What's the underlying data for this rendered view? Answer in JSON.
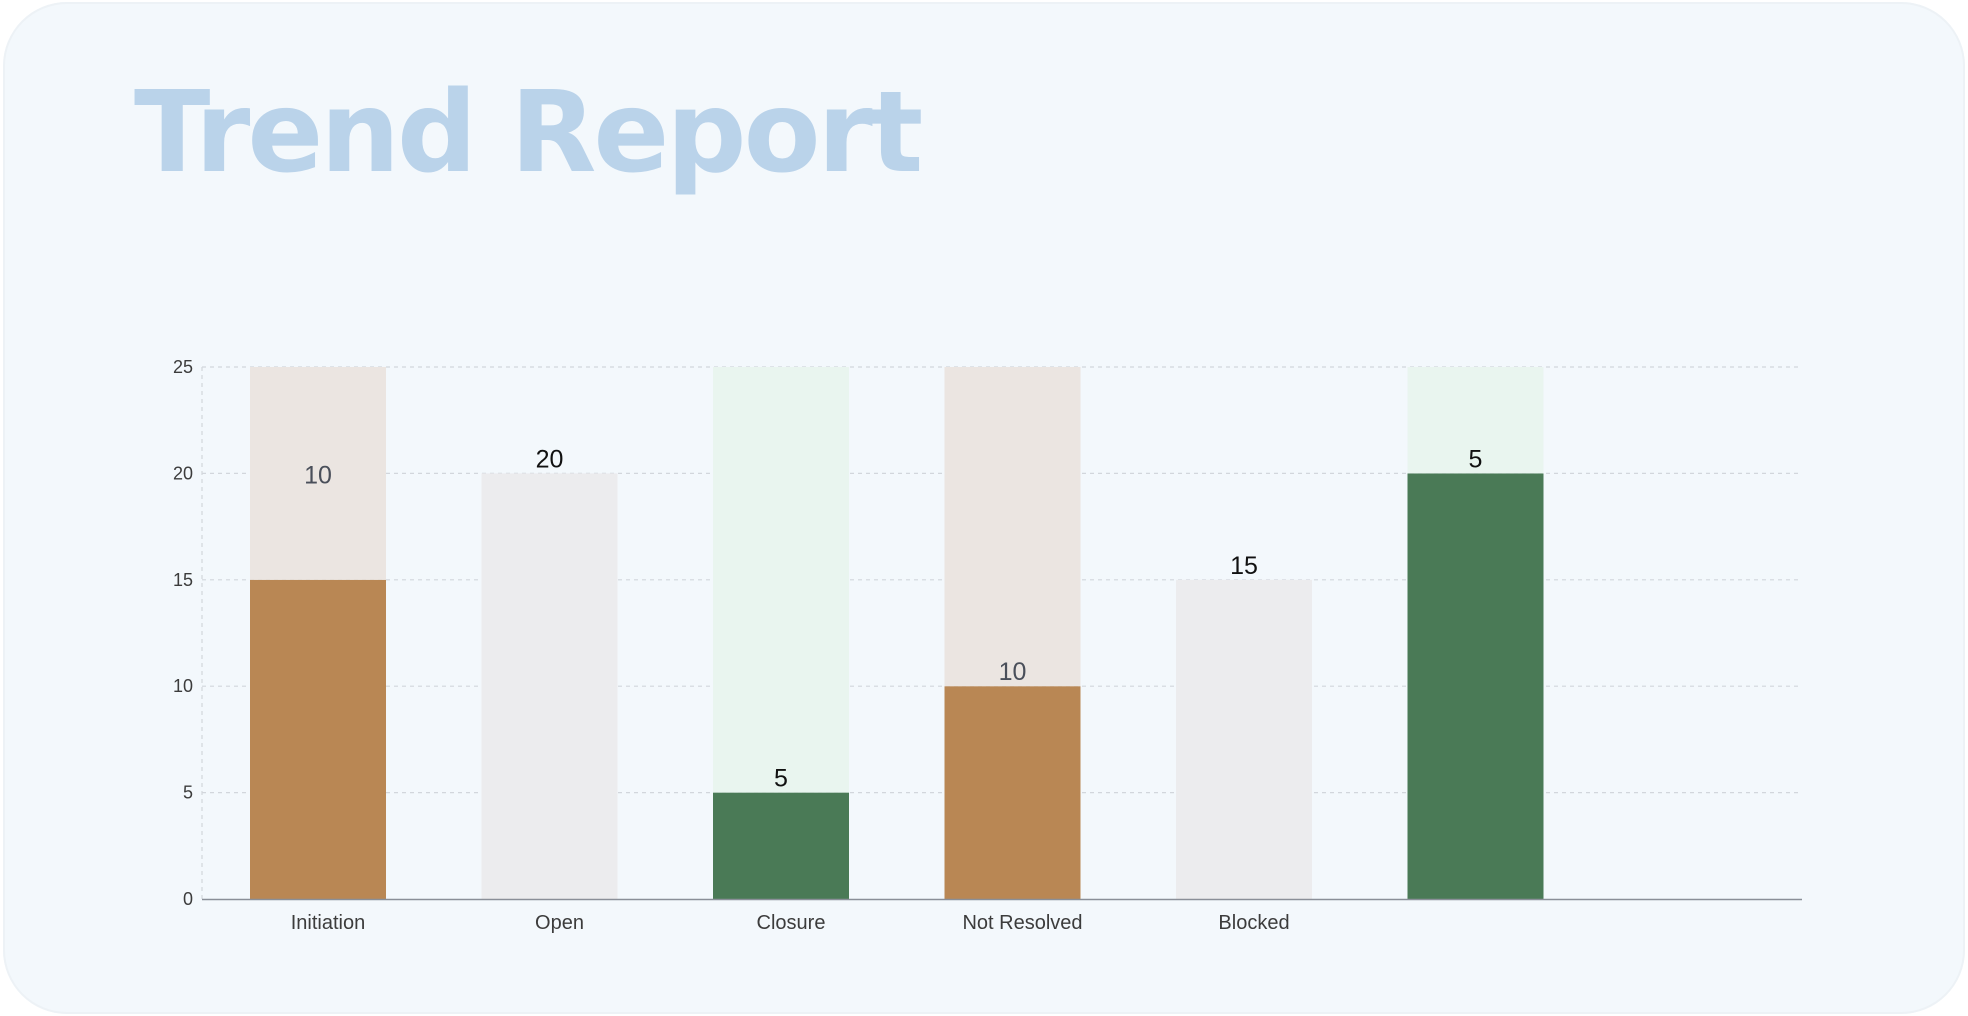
{
  "title": "Trend Report",
  "chart_data": {
    "type": "bar",
    "title": "Trend Report",
    "xlabel": "",
    "ylabel": "",
    "ylim": [
      0,
      25
    ],
    "yticks": [
      0,
      5,
      10,
      15,
      20,
      25
    ],
    "grid": true,
    "legend": "none",
    "categories": [
      "Initiation",
      "Open",
      "Closure",
      "Not Resolved",
      "Blocked",
      ""
    ],
    "series": [
      {
        "values": [
          15,
          20,
          5,
          10,
          15,
          20
        ],
        "colors": [
          "#b98754",
          "#ececee",
          "#4a7a56",
          "#b98754",
          "#ececee",
          "#4a7a56"
        ]
      },
      {
        "values": [
          10,
          0,
          20,
          15,
          0,
          5
        ],
        "colors": [
          "#ebe5e1",
          "#ececee",
          "#e9f5ef",
          "#ebe5e1",
          "#ececee",
          "#e9f5ef"
        ]
      }
    ],
    "data_labels": [
      {
        "text": "10",
        "color": "#4a4f5a"
      },
      {
        "text": "20",
        "color": "#111111"
      },
      {
        "text": "5",
        "color": "#111111"
      },
      {
        "text": "10",
        "color": "#4a4f5a"
      },
      {
        "text": "15",
        "color": "#111111"
      },
      {
        "text": "5",
        "color": "#111111"
      }
    ],
    "colors": {
      "axis": "#8a8f98",
      "grid": "#d2d6dc",
      "tick_text": "#3c3c3c",
      "title": "#bad3ea",
      "card_background": "#f3f8fc"
    }
  }
}
